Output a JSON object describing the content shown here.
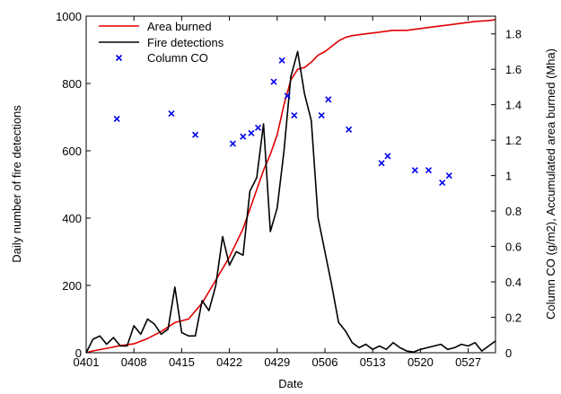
{
  "chart_data": {
    "type": "line",
    "xlabel": "Date",
    "ylabel_left": "Daily number of fire detections",
    "ylabel_right": "Column CO (g/m2), Accumulated area burned (Mha)",
    "x_ticks": [
      "0401",
      "0408",
      "0415",
      "0422",
      "0429",
      "0506",
      "0513",
      "0520",
      "0527"
    ],
    "x_tick_days": [
      1,
      8,
      15,
      22,
      29,
      36,
      43,
      50,
      57
    ],
    "xlim": [
      1,
      61
    ],
    "ylim_left": [
      0,
      1000
    ],
    "ylim_right": [
      0,
      1.9
    ],
    "yticks_left": [
      "0",
      "200",
      "400",
      "600",
      "800",
      "1000"
    ],
    "yticks_right": [
      "0",
      "0.2",
      "0.4",
      "0.6",
      "0.8",
      "1",
      "1.2",
      "1.4",
      "1.6",
      "1.8"
    ],
    "legend_position": "top-left",
    "series": [
      {
        "name": "Area burned",
        "color": "#e00000",
        "axis": "right",
        "style": "line",
        "x": [
          1,
          2,
          4,
          6,
          8,
          10,
          12,
          14,
          16,
          18,
          20,
          22,
          24,
          26,
          27,
          28,
          29,
          30,
          31,
          32,
          33,
          34,
          35,
          36,
          37,
          38,
          39,
          40,
          42,
          44,
          46,
          48,
          50,
          52,
          54,
          56,
          58,
          60,
          61
        ],
        "values": [
          0.0,
          0.01,
          0.025,
          0.04,
          0.05,
          0.08,
          0.12,
          0.17,
          0.19,
          0.28,
          0.41,
          0.54,
          0.7,
          0.92,
          1.03,
          1.12,
          1.23,
          1.4,
          1.54,
          1.6,
          1.61,
          1.64,
          1.68,
          1.7,
          1.73,
          1.76,
          1.78,
          1.79,
          1.8,
          1.81,
          1.82,
          1.82,
          1.83,
          1.84,
          1.85,
          1.86,
          1.87,
          1.875,
          1.88
        ]
      },
      {
        "name": "Fire detections",
        "color": "#000000",
        "axis": "left",
        "style": "line",
        "x": [
          1,
          2,
          3,
          4,
          5,
          6,
          7,
          8,
          9,
          10,
          11,
          12,
          13,
          14,
          15,
          16,
          17,
          18,
          19,
          20,
          21,
          22,
          23,
          24,
          25,
          26,
          27,
          28,
          29,
          30,
          31,
          32,
          33,
          34,
          35,
          36,
          37,
          38,
          39,
          40,
          41,
          42,
          43,
          44,
          45,
          46,
          47,
          48,
          49,
          50,
          51,
          52,
          53,
          54,
          55,
          56,
          57,
          58,
          59,
          60,
          61
        ],
        "values": [
          0,
          40,
          50,
          25,
          45,
          20,
          20,
          80,
          55,
          100,
          85,
          55,
          70,
          195,
          60,
          50,
          50,
          155,
          125,
          200,
          345,
          260,
          300,
          290,
          480,
          520,
          680,
          360,
          430,
          600,
          820,
          895,
          770,
          690,
          400,
          300,
          200,
          90,
          65,
          30,
          15,
          25,
          10,
          20,
          10,
          30,
          15,
          5,
          2,
          10,
          15,
          20,
          25,
          10,
          15,
          25,
          20,
          30,
          5,
          20,
          35
        ]
      },
      {
        "name": "Column CO",
        "color": "#0000ee",
        "axis": "right",
        "style": "marker-x",
        "x": [
          5.5,
          13.5,
          17,
          22.5,
          24,
          25.2,
          26.2,
          28.5,
          29.7,
          30.5,
          31.5,
          35.5,
          36.5,
          39.5,
          44.3,
          45.2,
          49.2,
          51.2,
          53.2,
          54.2
        ],
        "values": [
          1.32,
          1.35,
          1.23,
          1.18,
          1.22,
          1.24,
          1.27,
          1.53,
          1.65,
          1.45,
          1.34,
          1.34,
          1.43,
          1.26,
          1.07,
          1.11,
          1.03,
          1.03,
          0.96,
          1.0
        ]
      }
    ]
  }
}
